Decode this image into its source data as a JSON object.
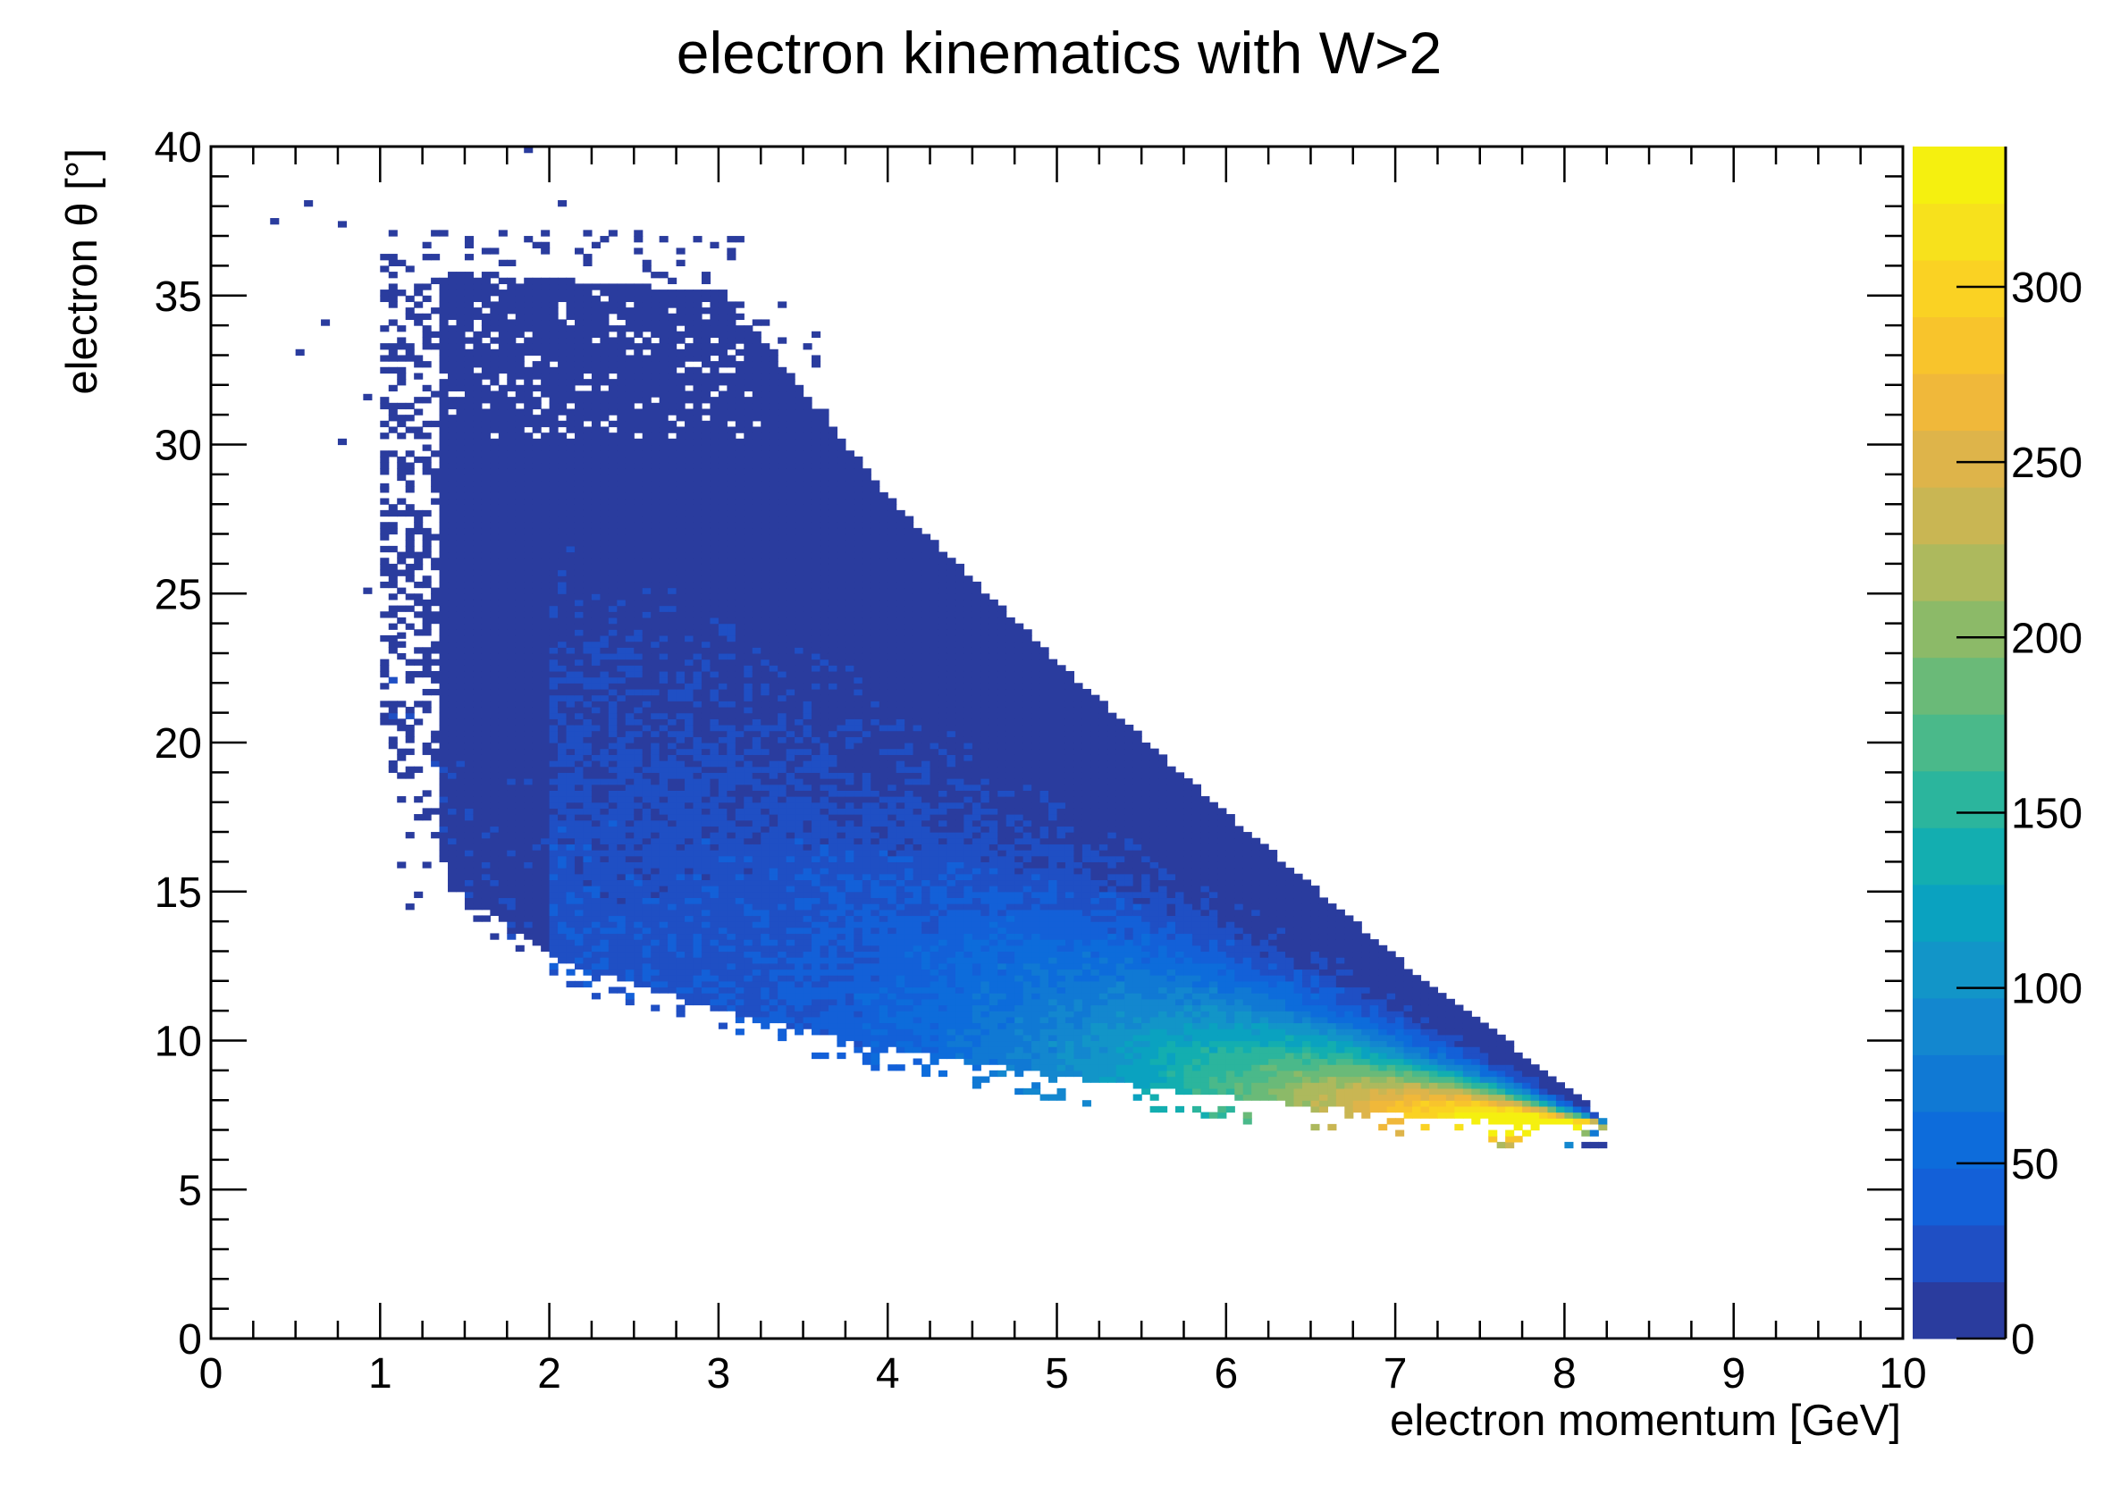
{
  "chart_data": {
    "type": "heatmap",
    "title": "electron kinematics with W>2",
    "xlabel": "electron momentum [GeV]",
    "ylabel": "electron θ [°]",
    "xlim": [
      0,
      10
    ],
    "ylim": [
      0,
      40
    ],
    "x_ticks": [
      "0",
      "1",
      "2",
      "3",
      "4",
      "5",
      "6",
      "7",
      "8",
      "9",
      "10"
    ],
    "y_ticks": [
      "0",
      "5",
      "10",
      "15",
      "20",
      "25",
      "30",
      "35",
      "40"
    ],
    "colorbar": {
      "range": [
        0,
        340
      ],
      "ticks": [
        "0",
        "50",
        "100",
        "150",
        "200",
        "250",
        "300"
      ],
      "palette": [
        "#2a3c9e",
        "#1f4fc4",
        "#1360d8",
        "#0d6cdb",
        "#1079d4",
        "#1387cf",
        "#1295c8",
        "#0aa2c0",
        "#13aeb0",
        "#2bb59d",
        "#4ab98a",
        "#6aba78",
        "#8cba68",
        "#adb95d",
        "#c9b653",
        "#deb44a",
        "#f0b83a",
        "#f8c42c",
        "#fad223",
        "#f7e11c",
        "#f5f00f"
      ]
    },
    "density_region": {
      "description_points_p_theta": [
        [
          1.2,
          35.8
        ],
        [
          3.0,
          35.0
        ],
        [
          4.5,
          25.0
        ],
        [
          6.0,
          17.5
        ],
        [
          7.0,
          12.6
        ],
        [
          8.2,
          7.2
        ],
        [
          7.0,
          7.5
        ],
        [
          5.5,
          8.3
        ],
        [
          4.0,
          9.5
        ],
        [
          2.5,
          11.3
        ],
        [
          1.5,
          14.0
        ],
        [
          1.2,
          20.0
        ]
      ],
      "peak": {
        "p": 7.5,
        "theta": 9.0,
        "counts": 330
      }
    },
    "grid": false
  }
}
